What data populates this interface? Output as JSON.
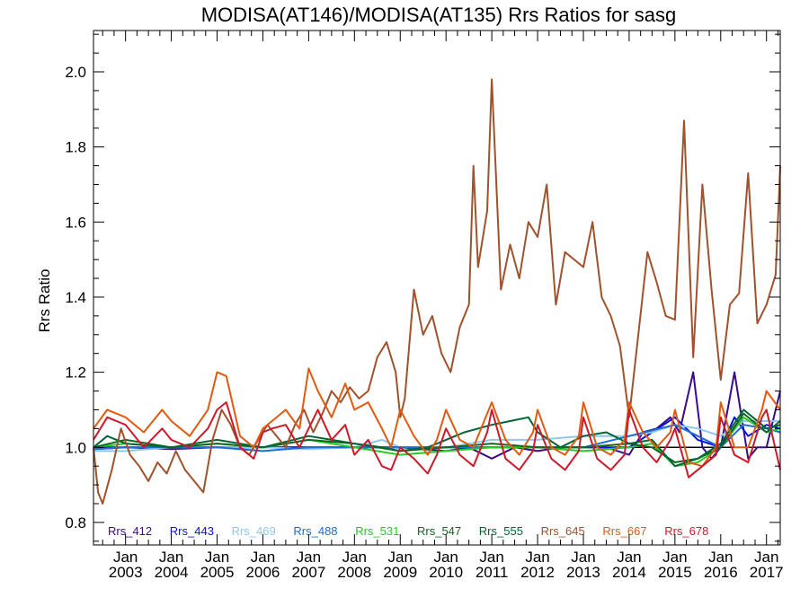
{
  "chart_data": {
    "type": "line",
    "title": "MODISA(AT146)/MODISA(AT135)  Rrs Ratios for sasg",
    "xlabel": "",
    "ylabel": "Rrs Ratio",
    "xlim": [
      2002.3,
      2017.3
    ],
    "ylim": [
      0.74,
      2.11
    ],
    "y_ticks": [
      0.8,
      1.0,
      1.2,
      1.4,
      1.6,
      1.8,
      2.0
    ],
    "y_tick_labels": [
      "0.8",
      "1.0",
      "1.2",
      "1.4",
      "1.6",
      "1.8",
      "2.0"
    ],
    "x_ticks": [
      2003,
      2004,
      2005,
      2006,
      2007,
      2008,
      2009,
      2010,
      2011,
      2012,
      2013,
      2014,
      2015,
      2016,
      2017
    ],
    "x_tick_months": [
      "Jan",
      "Jan",
      "Jan",
      "Jan",
      "Jan",
      "Jan",
      "Jan",
      "Jan",
      "Jan",
      "Jan",
      "Jan",
      "Jan",
      "Jan",
      "Jan",
      "Jan"
    ],
    "x_tick_years": [
      "2003",
      "2004",
      "2005",
      "2006",
      "2007",
      "2008",
      "2009",
      "2010",
      "2011",
      "2012",
      "2013",
      "2014",
      "2015",
      "2016",
      "2017"
    ],
    "reference_line": 1.0,
    "legend_position": "bottom inside plot",
    "series": [
      {
        "name": "Rrs_412",
        "color": "#3a0a8c",
        "x": [
          2002.3,
          2003.0,
          2004.0,
          2005.0,
          2006.0,
          2007.0,
          2008.0,
          2009.0,
          2010.0,
          2010.5,
          2011.0,
          2011.5,
          2012.0,
          2012.5,
          2013.0,
          2013.5,
          2014.0,
          2014.3,
          2014.6,
          2014.9,
          2015.1,
          2015.4,
          2015.6,
          2015.8,
          2016.0,
          2016.3,
          2016.6,
          2016.8,
          2017.0,
          2017.3
        ],
        "y": [
          1.0,
          1.0,
          0.995,
          1.0,
          1.0,
          1.0,
          1.0,
          1.0,
          0.99,
          1.0,
          0.97,
          1.0,
          0.99,
          1.0,
          1.0,
          1.0,
          0.98,
          1.04,
          1.05,
          1.08,
          1.04,
          1.2,
          1.0,
          0.97,
          1.0,
          1.2,
          0.97,
          1.0,
          1.0,
          1.15
        ]
      },
      {
        "name": "Rrs_443",
        "color": "#0a10e0",
        "x": [
          2002.3,
          2003.0,
          2004.0,
          2005.0,
          2006.0,
          2007.0,
          2008.0,
          2009.0,
          2010.0,
          2011.0,
          2012.0,
          2013.0,
          2014.0,
          2014.5,
          2015.0,
          2015.5,
          2016.0,
          2016.3,
          2016.6,
          2017.0,
          2017.3
        ],
        "y": [
          0.995,
          1.0,
          1.0,
          1.0,
          1.0,
          1.0,
          1.0,
          1.0,
          1.0,
          1.0,
          1.0,
          1.0,
          1.0,
          1.04,
          1.08,
          1.02,
          1.0,
          1.08,
          1.03,
          1.06,
          1.05
        ]
      },
      {
        "name": "Rrs_469",
        "color": "#8ec8ec",
        "x": [
          2002.3,
          2003.0,
          2004.0,
          2005.0,
          2006.0,
          2007.0,
          2008.0,
          2008.6,
          2009.0,
          2010.0,
          2011.0,
          2012.0,
          2013.0,
          2014.0,
          2014.5,
          2015.0,
          2015.5,
          2016.0,
          2016.5,
          2017.0,
          2017.3
        ],
        "y": [
          0.99,
          0.99,
          1.0,
          1.0,
          1.0,
          0.995,
          1.0,
          1.02,
          1.0,
          1.0,
          1.02,
          1.02,
          1.03,
          1.03,
          1.04,
          1.06,
          1.05,
          1.03,
          1.07,
          1.07,
          1.07
        ]
      },
      {
        "name": "Rrs_488",
        "color": "#1a6ed8",
        "x": [
          2002.3,
          2003.0,
          2004.0,
          2005.0,
          2006.0,
          2007.0,
          2008.0,
          2009.0,
          2010.0,
          2011.0,
          2012.0,
          2013.0,
          2014.0,
          2015.0,
          2015.5,
          2016.0,
          2016.5,
          2017.0,
          2017.3
        ],
        "y": [
          0.995,
          1.0,
          1.0,
          1.0,
          0.99,
          1.0,
          1.0,
          1.0,
          1.0,
          1.0,
          1.0,
          1.0,
          1.03,
          1.06,
          1.03,
          1.0,
          1.06,
          1.05,
          1.04
        ]
      },
      {
        "name": "Rrs_531",
        "color": "#22cc22",
        "x": [
          2002.3,
          2003.0,
          2004.0,
          2005.0,
          2006.0,
          2007.0,
          2008.0,
          2009.0,
          2010.0,
          2011.0,
          2012.0,
          2013.0,
          2014.0,
          2014.5,
          2015.0,
          2015.5,
          2016.0,
          2016.5,
          2017.0,
          2017.3
        ],
        "y": [
          1.0,
          1.01,
          1.0,
          1.01,
          1.0,
          1.02,
          1.0,
          0.98,
          0.99,
          1.0,
          1.0,
          0.99,
          1.0,
          1.01,
          0.95,
          0.96,
          1.0,
          1.08,
          1.04,
          1.05
        ]
      },
      {
        "name": "Rrs_547",
        "color": "#116622",
        "x": [
          2002.3,
          2003.0,
          2004.0,
          2005.0,
          2006.0,
          2007.0,
          2008.0,
          2009.0,
          2010.0,
          2011.0,
          2012.0,
          2013.0,
          2014.0,
          2014.5,
          2015.0,
          2015.5,
          2016.0,
          2016.5,
          2017.0,
          2017.3
        ],
        "y": [
          1.0,
          1.02,
          1.0,
          1.01,
          1.0,
          1.02,
          1.01,
          0.99,
          1.0,
          1.01,
          1.0,
          1.0,
          1.01,
          1.0,
          0.96,
          0.97,
          1.0,
          1.09,
          1.04,
          1.07
        ]
      },
      {
        "name": "Rrs_555",
        "color": "#006633",
        "x": [
          2002.3,
          2002.6,
          2003.0,
          2004.0,
          2005.0,
          2006.0,
          2007.0,
          2008.0,
          2008.6,
          2009.0,
          2009.6,
          2010.0,
          2010.4,
          2011.0,
          2011.4,
          2011.8,
          2012.0,
          2012.5,
          2013.0,
          2013.5,
          2014.0,
          2014.5,
          2015.0,
          2015.5,
          2016.0,
          2016.5,
          2017.0,
          2017.3
        ],
        "y": [
          1.0,
          1.03,
          1.01,
          1.0,
          1.02,
          1.0,
          1.03,
          1.01,
          1.0,
          0.99,
          1.0,
          1.02,
          1.04,
          1.06,
          1.07,
          1.08,
          1.04,
          1.0,
          1.03,
          1.04,
          1.01,
          1.02,
          0.95,
          0.97,
          1.01,
          1.1,
          1.05,
          1.06
        ]
      },
      {
        "name": "Rrs_645",
        "color": "#a0522d",
        "x": [
          2002.3,
          2002.4,
          2002.5,
          2002.7,
          2002.9,
          2003.1,
          2003.3,
          2003.5,
          2003.7,
          2003.9,
          2004.1,
          2004.3,
          2004.5,
          2004.7,
          2004.9,
          2005.1,
          2005.3,
          2005.5,
          2005.7,
          2005.9,
          2006.1,
          2006.3,
          2006.5,
          2006.7,
          2006.9,
          2007.1,
          2007.3,
          2007.5,
          2007.7,
          2007.9,
          2008.1,
          2008.3,
          2008.5,
          2008.7,
          2008.9,
          2009.0,
          2009.1,
          2009.3,
          2009.5,
          2009.7,
          2009.9,
          2010.1,
          2010.3,
          2010.5,
          2010.6,
          2010.7,
          2010.9,
          2011.0,
          2011.2,
          2011.4,
          2011.6,
          2011.8,
          2012.0,
          2012.2,
          2012.4,
          2012.6,
          2012.8,
          2013.0,
          2013.2,
          2013.4,
          2013.6,
          2013.8,
          2014.0,
          2014.2,
          2014.4,
          2014.6,
          2014.8,
          2015.0,
          2015.2,
          2015.4,
          2015.6,
          2015.8,
          2016.0,
          2016.2,
          2016.4,
          2016.6,
          2016.8,
          2017.0,
          2017.2,
          2017.3
        ],
        "y": [
          1.0,
          0.88,
          0.85,
          0.94,
          1.05,
          0.98,
          0.95,
          0.91,
          0.96,
          0.93,
          0.99,
          0.94,
          0.91,
          0.88,
          1.02,
          1.1,
          1.06,
          1.0,
          0.98,
          1.02,
          1.06,
          1.03,
          1.0,
          1.06,
          1.1,
          1.04,
          1.09,
          1.15,
          1.12,
          1.16,
          1.13,
          1.15,
          1.24,
          1.28,
          1.2,
          1.08,
          1.13,
          1.42,
          1.3,
          1.35,
          1.25,
          1.2,
          1.32,
          1.38,
          1.75,
          1.48,
          1.63,
          1.98,
          1.42,
          1.54,
          1.45,
          1.6,
          1.56,
          1.7,
          1.38,
          1.52,
          1.5,
          1.48,
          1.6,
          1.4,
          1.35,
          1.27,
          1.08,
          1.3,
          1.52,
          1.44,
          1.35,
          1.34,
          1.87,
          1.24,
          1.7,
          1.42,
          1.18,
          1.38,
          1.41,
          1.73,
          1.33,
          1.38,
          1.46,
          1.75
        ]
      },
      {
        "name": "Rrs_667",
        "color": "#e05a10",
        "x": [
          2002.3,
          2002.6,
          2003.0,
          2003.4,
          2003.8,
          2004.0,
          2004.4,
          2004.8,
          2005.0,
          2005.2,
          2005.5,
          2005.8,
          2006.0,
          2006.2,
          2006.5,
          2006.8,
          2007.0,
          2007.2,
          2007.5,
          2007.8,
          2008.0,
          2008.3,
          2008.6,
          2008.8,
          2009.0,
          2009.3,
          2009.6,
          2009.8,
          2010.0,
          2010.3,
          2010.6,
          2010.9,
          2011.0,
          2011.3,
          2011.6,
          2011.9,
          2012.0,
          2012.3,
          2012.6,
          2012.9,
          2013.0,
          2013.3,
          2013.6,
          2013.9,
          2014.0,
          2014.3,
          2014.6,
          2014.9,
          2015.0,
          2015.3,
          2015.6,
          2015.9,
          2016.0,
          2016.3,
          2016.6,
          2016.9,
          2017.0,
          2017.3
        ],
        "y": [
          1.05,
          1.1,
          1.08,
          1.04,
          1.1,
          1.07,
          1.03,
          1.1,
          1.2,
          1.19,
          1.03,
          1.0,
          1.05,
          1.07,
          1.1,
          1.05,
          1.21,
          1.15,
          1.08,
          1.17,
          1.1,
          1.12,
          1.05,
          1.0,
          1.1,
          1.03,
          0.98,
          1.02,
          1.1,
          1.02,
          1.0,
          1.09,
          1.12,
          1.02,
          0.98,
          1.04,
          1.1,
          1.0,
          0.98,
          1.03,
          1.12,
          1.0,
          0.98,
          1.02,
          1.12,
          1.04,
          1.0,
          1.04,
          1.1,
          0.96,
          0.95,
          1.0,
          1.12,
          1.0,
          1.0,
          1.1,
          1.15,
          1.1
        ]
      },
      {
        "name": "Rrs_678",
        "color": "#cc1a2a",
        "x": [
          2002.3,
          2002.6,
          2003.0,
          2003.4,
          2003.8,
          2004.0,
          2004.4,
          2004.8,
          2005.0,
          2005.2,
          2005.5,
          2005.8,
          2006.0,
          2006.2,
          2006.5,
          2006.8,
          2007.0,
          2007.2,
          2007.5,
          2007.8,
          2008.0,
          2008.3,
          2008.6,
          2008.8,
          2009.0,
          2009.3,
          2009.6,
          2009.8,
          2010.0,
          2010.3,
          2010.6,
          2010.9,
          2011.0,
          2011.3,
          2011.6,
          2011.9,
          2012.0,
          2012.3,
          2012.6,
          2012.9,
          2013.0,
          2013.3,
          2013.6,
          2013.9,
          2014.0,
          2014.3,
          2014.6,
          2014.9,
          2015.0,
          2015.3,
          2015.6,
          2015.9,
          2016.0,
          2016.3,
          2016.6,
          2016.9,
          2017.0,
          2017.3
        ],
        "y": [
          1.02,
          1.08,
          1.06,
          1.0,
          1.05,
          1.02,
          1.0,
          1.05,
          1.1,
          1.12,
          1.0,
          0.97,
          1.04,
          1.05,
          1.06,
          1.0,
          1.05,
          1.1,
          1.02,
          1.06,
          0.98,
          1.02,
          0.95,
          0.94,
          1.0,
          0.97,
          0.93,
          0.98,
          1.05,
          0.98,
          0.95,
          1.04,
          1.1,
          0.97,
          0.94,
          0.99,
          1.06,
          0.97,
          0.94,
          0.99,
          1.08,
          0.97,
          0.94,
          0.98,
          1.1,
          1.0,
          0.96,
          1.02,
          1.05,
          0.92,
          0.95,
          0.98,
          1.08,
          0.98,
          0.96,
          1.08,
          1.1,
          0.94
        ]
      }
    ]
  }
}
